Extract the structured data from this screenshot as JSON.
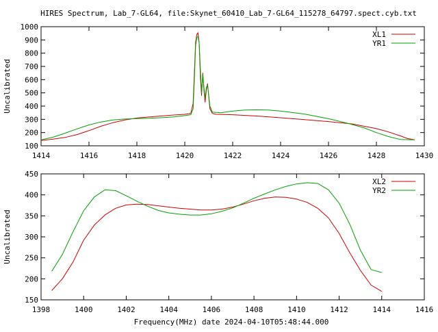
{
  "title": "HIRES Spectrum, Lab_7-GL64, file:Skynet_60410_Lab_7-GL64_115278_64797.spect.cyb.txt",
  "xlabel": "Frequency(MHz) date 2024-04-10T05:48:44.000",
  "colors": {
    "red": "#cc0000",
    "green": "#00a000",
    "axis": "#000000"
  },
  "chart_data": [
    {
      "type": "line",
      "ylabel": "Uncalibrated",
      "xlim": [
        1414,
        1430
      ],
      "ylim": [
        100,
        1000
      ],
      "xticks": [
        1414,
        1416,
        1418,
        1420,
        1422,
        1424,
        1426,
        1428,
        1430
      ],
      "yticks": [
        100,
        200,
        300,
        400,
        500,
        600,
        700,
        800,
        900,
        1000
      ],
      "legend_position": "top-right",
      "grid": false,
      "series": [
        {
          "name": "XL1",
          "color": "#cc0000",
          "points": [
            [
              1414.0,
              140
            ],
            [
              1414.5,
              150
            ],
            [
              1415.0,
              163
            ],
            [
              1415.5,
              185
            ],
            [
              1416.0,
              215
            ],
            [
              1416.5,
              248
            ],
            [
              1417.0,
              275
            ],
            [
              1417.5,
              295
            ],
            [
              1418.0,
              310
            ],
            [
              1418.5,
              318
            ],
            [
              1419.0,
              325
            ],
            [
              1419.5,
              332
            ],
            [
              1420.0,
              338
            ],
            [
              1420.25,
              345
            ],
            [
              1420.35,
              420
            ],
            [
              1420.4,
              650
            ],
            [
              1420.45,
              880
            ],
            [
              1420.5,
              940
            ],
            [
              1420.55,
              955
            ],
            [
              1420.6,
              880
            ],
            [
              1420.65,
              620
            ],
            [
              1420.7,
              480
            ],
            [
              1420.75,
              650
            ],
            [
              1420.8,
              520
            ],
            [
              1420.85,
              430
            ],
            [
              1420.9,
              520
            ],
            [
              1420.95,
              570
            ],
            [
              1421.0,
              470
            ],
            [
              1421.05,
              380
            ],
            [
              1421.15,
              345
            ],
            [
              1421.3,
              338
            ],
            [
              1422.0,
              335
            ],
            [
              1423.0,
              325
            ],
            [
              1424.0,
              312
            ],
            [
              1425.0,
              298
            ],
            [
              1426.0,
              283
            ],
            [
              1427.0,
              265
            ],
            [
              1428.0,
              230
            ],
            [
              1428.5,
              205
            ],
            [
              1429.0,
              175
            ],
            [
              1429.3,
              155
            ],
            [
              1429.6,
              145
            ]
          ]
        },
        {
          "name": "YR1",
          "color": "#00a000",
          "points": [
            [
              1414.0,
              145
            ],
            [
              1414.5,
              165
            ],
            [
              1415.0,
              195
            ],
            [
              1415.5,
              228
            ],
            [
              1416.0,
              258
            ],
            [
              1416.5,
              280
            ],
            [
              1417.0,
              295
            ],
            [
              1417.5,
              302
            ],
            [
              1418.0,
              306
            ],
            [
              1418.5,
              308
            ],
            [
              1419.0,
              312
            ],
            [
              1419.5,
              318
            ],
            [
              1420.0,
              328
            ],
            [
              1420.25,
              335
            ],
            [
              1420.35,
              380
            ],
            [
              1420.4,
              600
            ],
            [
              1420.45,
              850
            ],
            [
              1420.5,
              920
            ],
            [
              1420.55,
              925
            ],
            [
              1420.6,
              880
            ],
            [
              1420.65,
              680
            ],
            [
              1420.7,
              500
            ],
            [
              1420.75,
              640
            ],
            [
              1420.8,
              540
            ],
            [
              1420.85,
              460
            ],
            [
              1420.9,
              540
            ],
            [
              1420.95,
              560
            ],
            [
              1421.0,
              480
            ],
            [
              1421.05,
              400
            ],
            [
              1421.15,
              355
            ],
            [
              1421.5,
              350
            ],
            [
              1422.0,
              362
            ],
            [
              1422.5,
              370
            ],
            [
              1423.0,
              372
            ],
            [
              1423.5,
              370
            ],
            [
              1424.0,
              362
            ],
            [
              1425.0,
              340
            ],
            [
              1426.0,
              305
            ],
            [
              1426.8,
              270
            ],
            [
              1427.5,
              235
            ],
            [
              1428.0,
              200
            ],
            [
              1428.5,
              170
            ],
            [
              1429.0,
              148
            ],
            [
              1429.6,
              145
            ]
          ]
        }
      ]
    },
    {
      "type": "line",
      "ylabel": "Uncalibrated",
      "xlim": [
        1398,
        1416
      ],
      "ylim": [
        150,
        450
      ],
      "xticks": [
        1398,
        1400,
        1402,
        1404,
        1406,
        1408,
        1410,
        1412,
        1414,
        1416
      ],
      "yticks": [
        150,
        200,
        250,
        300,
        350,
        400,
        450
      ],
      "legend_position": "top-right",
      "grid": false,
      "series": [
        {
          "name": "XL2",
          "color": "#cc0000",
          "points": [
            [
              1398.5,
              172
            ],
            [
              1399.0,
              200
            ],
            [
              1399.5,
              240
            ],
            [
              1400.0,
              292
            ],
            [
              1400.5,
              328
            ],
            [
              1401.0,
              352
            ],
            [
              1401.5,
              368
            ],
            [
              1402.0,
              376
            ],
            [
              1402.5,
              378
            ],
            [
              1403.0,
              377
            ],
            [
              1403.5,
              374
            ],
            [
              1404.0,
              371
            ],
            [
              1404.5,
              368
            ],
            [
              1405.0,
              366
            ],
            [
              1405.5,
              364
            ],
            [
              1406.0,
              364
            ],
            [
              1406.5,
              366
            ],
            [
              1407.0,
              371
            ],
            [
              1407.5,
              378
            ],
            [
              1408.0,
              386
            ],
            [
              1408.5,
              392
            ],
            [
              1409.0,
              395
            ],
            [
              1409.5,
              394
            ],
            [
              1410.0,
              390
            ],
            [
              1410.5,
              382
            ],
            [
              1411.0,
              368
            ],
            [
              1411.5,
              345
            ],
            [
              1412.0,
              308
            ],
            [
              1412.5,
              262
            ],
            [
              1413.0,
              220
            ],
            [
              1413.5,
              185
            ],
            [
              1414.0,
              170
            ]
          ]
        },
        {
          "name": "YR2",
          "color": "#00a000",
          "points": [
            [
              1398.5,
              218
            ],
            [
              1399.0,
              258
            ],
            [
              1399.5,
              312
            ],
            [
              1400.0,
              362
            ],
            [
              1400.5,
              395
            ],
            [
              1401.0,
              412
            ],
            [
              1401.5,
              410
            ],
            [
              1402.0,
              398
            ],
            [
              1402.5,
              385
            ],
            [
              1403.0,
              373
            ],
            [
              1403.5,
              363
            ],
            [
              1404.0,
              357
            ],
            [
              1404.5,
              354
            ],
            [
              1405.0,
              352
            ],
            [
              1405.5,
              352
            ],
            [
              1406.0,
              355
            ],
            [
              1406.5,
              361
            ],
            [
              1407.0,
              369
            ],
            [
              1407.5,
              380
            ],
            [
              1408.0,
              392
            ],
            [
              1408.5,
              402
            ],
            [
              1409.0,
              412
            ],
            [
              1409.5,
              420
            ],
            [
              1410.0,
              426
            ],
            [
              1410.5,
              429
            ],
            [
              1411.0,
              427
            ],
            [
              1411.5,
              412
            ],
            [
              1412.0,
              380
            ],
            [
              1412.5,
              330
            ],
            [
              1413.0,
              268
            ],
            [
              1413.5,
              222
            ],
            [
              1414.0,
              215
            ]
          ]
        }
      ]
    }
  ]
}
